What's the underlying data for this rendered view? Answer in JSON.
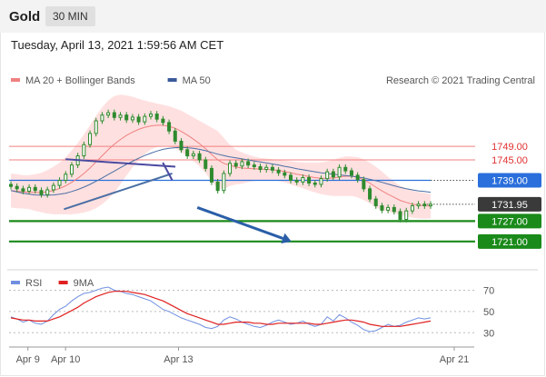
{
  "header": {
    "symbol": "Gold",
    "timeframe": "30 MIN",
    "datetime": "Tuesday, April 13, 2021 1:59:56 AM CET"
  },
  "credit": "Research © 2021 Trading Central",
  "colors": {
    "bg": "#ffffff",
    "candle": "#2e8b2e",
    "band": "#ffd6d6",
    "ma20": "#f08080",
    "ma50": "#4a6fa5",
    "pivot": "#2a6fdb",
    "support": "#1a8a1a",
    "resistance": "#f08080",
    "rsi": "#6f8fe0",
    "rsi_ma": "#e02020"
  },
  "chart_data": [
    {
      "type": "line",
      "legend": [
        {
          "name": "MA 20 + Bollinger Bands",
          "color": "#f08080"
        },
        {
          "name": "MA 50",
          "color": "#3a5a9a"
        }
      ],
      "ylim": [
        1714,
        1768
      ],
      "xlim": [
        "2021-04-08 12:00",
        "2021-04-21 00:00"
      ],
      "x_ticks": [
        "Apr 9",
        "Apr 10",
        "Apr 13",
        "Apr 21"
      ],
      "levels": [
        {
          "label": "1749.00",
          "value": 1749.0,
          "kind": "resistance"
        },
        {
          "label": "1745.00",
          "value": 1745.0,
          "kind": "resistance"
        },
        {
          "label": "1739.00",
          "value": 1739.0,
          "kind": "pivot"
        },
        {
          "label": "1731.95",
          "value": 1731.95,
          "kind": "last"
        },
        {
          "label": "1727.00",
          "value": 1727.0,
          "kind": "support"
        },
        {
          "label": "1721.00",
          "value": 1721.0,
          "kind": "support"
        }
      ],
      "price_series": [
        1737.2,
        1736.5,
        1735.8,
        1736.9,
        1736.0,
        1734.8,
        1736.2,
        1737.5,
        1739.0,
        1740.8,
        1743.5,
        1746.2,
        1749.5,
        1752.8,
        1756.5,
        1758.2,
        1758.9,
        1757.5,
        1758.2,
        1756.8,
        1757.6,
        1756.2,
        1757.8,
        1758.5,
        1757.0,
        1756.0,
        1753.5,
        1750.5,
        1748.0,
        1746.2,
        1746.8,
        1745.0,
        1742.5,
        1738.5,
        1736.0,
        1741.0,
        1744.0,
        1743.2,
        1744.5,
        1743.5,
        1743.0,
        1742.2,
        1742.8,
        1742.0,
        1741.2,
        1740.5,
        1739.0,
        1738.5,
        1739.8,
        1738.2,
        1737.8,
        1739.5,
        1741.5,
        1740.0,
        1742.8,
        1741.8,
        1740.5,
        1739.2,
        1736.5,
        1733.5,
        1731.5,
        1730.2,
        1731.0,
        1729.8,
        1727.5,
        1730.0,
        1731.5,
        1732.0,
        1731.5,
        1731.95
      ],
      "ma20": [
        1736.0,
        1735.8,
        1735.6,
        1735.5,
        1735.4,
        1735.4,
        1735.6,
        1736.0,
        1736.6,
        1737.4,
        1738.4,
        1739.6,
        1741.0,
        1742.6,
        1744.4,
        1746.2,
        1748.0,
        1749.6,
        1751.0,
        1752.2,
        1753.2,
        1754.0,
        1754.6,
        1755.0,
        1755.2,
        1755.2,
        1754.9,
        1754.3,
        1753.4,
        1752.3,
        1751.1,
        1749.8,
        1748.3,
        1746.6,
        1745.0,
        1744.0,
        1743.4,
        1742.9,
        1742.6,
        1742.5,
        1742.4,
        1742.3,
        1742.2,
        1742.1,
        1741.9,
        1741.6,
        1741.2,
        1740.8,
        1740.5,
        1740.1,
        1739.8,
        1739.6,
        1739.6,
        1739.7,
        1740.0,
        1740.2,
        1740.2,
        1739.9,
        1739.2,
        1738.2,
        1737.0,
        1735.9,
        1734.9,
        1734.0,
        1733.1,
        1732.5,
        1732.0,
        1731.7,
        1731.5,
        1731.4
      ],
      "ma50": [
        1736.0,
        1735.6,
        1735.2,
        1734.9,
        1734.7,
        1734.6,
        1734.6,
        1734.7,
        1734.9,
        1735.2,
        1735.7,
        1736.3,
        1737.0,
        1737.8,
        1738.7,
        1739.7,
        1740.7,
        1741.7,
        1742.7,
        1743.7,
        1744.6,
        1745.5,
        1746.3,
        1747.0,
        1747.6,
        1748.1,
        1748.4,
        1748.6,
        1748.7,
        1748.6,
        1748.4,
        1748.1,
        1747.7,
        1747.2,
        1746.7,
        1746.3,
        1745.9,
        1745.6,
        1745.3,
        1745.0,
        1744.7,
        1744.4,
        1744.1,
        1743.8,
        1743.5,
        1743.1,
        1742.8,
        1742.4,
        1742.1,
        1741.8,
        1741.5,
        1741.2,
        1741.0,
        1740.8,
        1740.6,
        1740.4,
        1740.2,
        1740.0,
        1739.7,
        1739.3,
        1738.9,
        1738.4,
        1737.9,
        1737.4,
        1736.9,
        1736.5,
        1736.2,
        1735.9,
        1735.7,
        1735.5
      ],
      "band_upper": [
        1741.0,
        1740.8,
        1740.5,
        1740.5,
        1740.8,
        1741.2,
        1742.0,
        1743.0,
        1744.2,
        1745.8,
        1747.8,
        1750.0,
        1752.5,
        1755.2,
        1758.0,
        1760.5,
        1762.5,
        1763.8,
        1764.2,
        1764.0,
        1763.6,
        1763.0,
        1762.5,
        1762.0,
        1761.6,
        1761.2,
        1760.8,
        1760.2,
        1759.5,
        1758.5,
        1757.5,
        1756.5,
        1755.5,
        1754.5,
        1753.5,
        1751.5,
        1749.5,
        1748.0,
        1747.2,
        1746.5,
        1746.0,
        1745.6,
        1745.4,
        1745.2,
        1745.0,
        1744.8,
        1744.6,
        1744.4,
        1744.3,
        1744.2,
        1744.2,
        1744.3,
        1744.6,
        1745.0,
        1745.6,
        1746.0,
        1746.0,
        1745.8,
        1745.2,
        1744.2,
        1743.0,
        1741.6,
        1740.0,
        1738.6,
        1737.4,
        1736.6,
        1736.0,
        1735.6,
        1735.3,
        1735.0
      ],
      "band_lower": [
        1731.0,
        1730.8,
        1730.7,
        1730.5,
        1730.0,
        1729.6,
        1729.2,
        1729.0,
        1729.0,
        1729.0,
        1729.0,
        1729.2,
        1729.5,
        1730.0,
        1730.8,
        1732.0,
        1733.5,
        1735.4,
        1737.8,
        1740.4,
        1742.8,
        1745.0,
        1746.7,
        1748.0,
        1748.8,
        1749.2,
        1749.0,
        1748.4,
        1747.3,
        1746.1,
        1744.7,
        1743.1,
        1741.1,
        1738.7,
        1736.5,
        1736.5,
        1737.3,
        1737.8,
        1738.0,
        1738.5,
        1738.8,
        1739.0,
        1739.0,
        1739.0,
        1738.8,
        1738.4,
        1737.8,
        1737.2,
        1736.7,
        1736.0,
        1735.4,
        1734.9,
        1734.6,
        1734.4,
        1734.4,
        1734.4,
        1734.4,
        1734.0,
        1733.2,
        1732.2,
        1731.0,
        1730.2,
        1729.8,
        1729.4,
        1728.8,
        1728.4,
        1728.0,
        1727.8,
        1727.7,
        1727.8
      ],
      "trendlines": [
        {
          "from": [
            "2021-04-09 23:00",
            1730.5
          ],
          "to": [
            "2021-04-12 20:00",
            1741.0
          ],
          "color": "#4a6fa5"
        },
        {
          "from": [
            "2021-04-10 00:00",
            1745.2
          ],
          "to": [
            "2021-04-12 22:00",
            1743.0
          ],
          "color": "#4a4aa0"
        },
        {
          "from": [
            "2021-04-12 14:00",
            1744.2
          ],
          "to": [
            "2021-04-12 20:00",
            1739.0
          ],
          "color": "#4a4aa0"
        }
      ],
      "projection_arrow": {
        "from": [
          "2021-04-13 12:00",
          1731.0
        ],
        "to": [
          "2021-04-16 00:00",
          1721.0
        ]
      }
    },
    {
      "type": "line",
      "legend": [
        {
          "name": "RSI",
          "color": "#6f8fe0"
        },
        {
          "name": "9MA",
          "color": "#e02020"
        }
      ],
      "ylim": [
        20,
        85
      ],
      "y_ticks": [
        "70",
        "50",
        "30"
      ],
      "rsi": [
        45,
        43,
        40,
        42,
        39,
        38,
        41,
        47,
        52,
        55,
        60,
        64,
        67,
        68,
        70,
        72,
        73,
        70,
        69,
        67,
        66,
        64,
        62,
        60,
        56,
        52,
        50,
        47,
        44,
        42,
        40,
        38,
        35,
        34,
        36,
        42,
        45,
        43,
        40,
        38,
        36,
        35,
        37,
        40,
        42,
        40,
        38,
        39,
        41,
        38,
        36,
        38,
        45,
        41,
        47,
        44,
        40,
        37,
        33,
        31,
        32,
        35,
        38,
        36,
        37,
        40,
        42,
        44,
        43,
        44
      ],
      "rsi_ma": [
        44,
        43,
        42,
        42,
        41,
        41,
        41,
        43,
        45,
        48,
        51,
        54,
        58,
        61,
        64,
        66,
        68,
        69,
        69,
        69,
        68,
        67,
        66,
        64,
        62,
        60,
        57,
        54,
        51,
        48,
        46,
        44,
        42,
        40,
        38,
        38,
        39,
        40,
        40,
        40,
        39,
        39,
        38,
        38,
        39,
        39,
        39,
        39,
        39,
        39,
        38,
        38,
        39,
        40,
        41,
        42,
        42,
        41,
        40,
        38,
        37,
        36,
        36,
        36,
        36,
        37,
        38,
        39,
        40,
        41
      ]
    }
  ]
}
